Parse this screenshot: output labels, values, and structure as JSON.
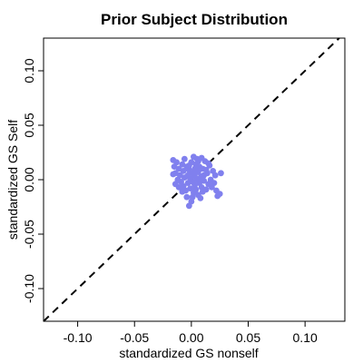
{
  "chart_data": {
    "type": "scatter",
    "title": "Prior Subject Distribution",
    "xlabel": "standardized GS nonself",
    "ylabel": "standardized GS Self",
    "xlim": [
      -0.13,
      0.135
    ],
    "ylim": [
      -0.13,
      0.13
    ],
    "xticks": [
      -0.1,
      -0.05,
      0.0,
      0.05,
      0.1
    ],
    "xtick_labels": [
      "-0.10",
      "-0.05",
      "0.00",
      "0.05",
      "0.10"
    ],
    "yticks": [
      -0.1,
      -0.05,
      0.0,
      0.05,
      0.1
    ],
    "ytick_labels": [
      "-0.10",
      "-0.05",
      "0.00",
      "0.05",
      "0.10"
    ],
    "grid": false,
    "point_color": "#8080ee",
    "reference_line": {
      "type": "identity",
      "slope": 1,
      "intercept": 0,
      "style": "dashed",
      "color": "#000000"
    },
    "points": [
      {
        "x": -0.016,
        "y": 0.018
      },
      {
        "x": -0.015,
        "y": 0.012
      },
      {
        "x": -0.014,
        "y": 0.006
      },
      {
        "x": -0.012,
        "y": 0.0
      },
      {
        "x": -0.014,
        "y": -0.004
      },
      {
        "x": -0.011,
        "y": 0.01
      },
      {
        "x": -0.01,
        "y": 0.004
      },
      {
        "x": -0.009,
        "y": -0.002
      },
      {
        "x": -0.008,
        "y": 0.014
      },
      {
        "x": -0.007,
        "y": 0.008
      },
      {
        "x": -0.007,
        "y": -0.006
      },
      {
        "x": -0.006,
        "y": 0.002
      },
      {
        "x": -0.005,
        "y": -0.01
      },
      {
        "x": -0.004,
        "y": 0.012
      },
      {
        "x": -0.004,
        "y": -0.016
      },
      {
        "x": -0.003,
        "y": 0.004
      },
      {
        "x": -0.003,
        "y": -0.003
      },
      {
        "x": -0.002,
        "y": 0.009
      },
      {
        "x": -0.002,
        "y": -0.024
      },
      {
        "x": -0.001,
        "y": 0.001
      },
      {
        "x": -0.001,
        "y": -0.008
      },
      {
        "x": 0.0,
        "y": 0.016
      },
      {
        "x": 0.0,
        "y": -0.02
      },
      {
        "x": 0.001,
        "y": 0.006
      },
      {
        "x": 0.001,
        "y": -0.002
      },
      {
        "x": 0.002,
        "y": 0.021
      },
      {
        "x": 0.002,
        "y": -0.012
      },
      {
        "x": 0.003,
        "y": 0.01
      },
      {
        "x": 0.003,
        "y": 0.003
      },
      {
        "x": 0.003,
        "y": -0.005
      },
      {
        "x": 0.004,
        "y": 0.014
      },
      {
        "x": 0.004,
        "y": -0.009
      },
      {
        "x": 0.005,
        "y": 0.0
      },
      {
        "x": 0.005,
        "y": 0.019
      },
      {
        "x": 0.006,
        "y": -0.014
      },
      {
        "x": 0.006,
        "y": 0.007
      },
      {
        "x": 0.007,
        "y": -0.003
      },
      {
        "x": 0.007,
        "y": 0.012
      },
      {
        "x": 0.008,
        "y": -0.017
      },
      {
        "x": 0.008,
        "y": 0.002
      },
      {
        "x": 0.009,
        "y": 0.02
      },
      {
        "x": 0.009,
        "y": -0.007
      },
      {
        "x": 0.01,
        "y": 0.01
      },
      {
        "x": 0.01,
        "y": -0.011
      },
      {
        "x": 0.011,
        "y": 0.004
      },
      {
        "x": 0.011,
        "y": -0.001
      },
      {
        "x": 0.012,
        "y": 0.017
      },
      {
        "x": 0.013,
        "y": -0.009
      },
      {
        "x": 0.014,
        "y": 0.006
      },
      {
        "x": 0.015,
        "y": -0.004
      },
      {
        "x": 0.016,
        "y": 0.013
      },
      {
        "x": 0.017,
        "y": 0.0
      },
      {
        "x": 0.018,
        "y": -0.007
      },
      {
        "x": 0.019,
        "y": 0.008
      },
      {
        "x": 0.021,
        "y": 0.004
      },
      {
        "x": 0.022,
        "y": -0.01
      },
      {
        "x": 0.023,
        "y": -0.015
      },
      {
        "x": 0.025,
        "y": -0.013
      },
      {
        "x": 0.026,
        "y": 0.006
      },
      {
        "x": -0.016,
        "y": 0.005
      },
      {
        "x": -0.013,
        "y": 0.016
      },
      {
        "x": -0.006,
        "y": 0.019
      },
      {
        "x": 0.004,
        "y": 0.008
      },
      {
        "x": 0.013,
        "y": 0.009
      },
      {
        "x": -0.008,
        "y": -0.011
      },
      {
        "x": 0.001,
        "y": -0.016
      },
      {
        "x": 0.015,
        "y": 0.015
      },
      {
        "x": 0.02,
        "y": -0.003
      },
      {
        "x": -0.011,
        "y": -0.007
      },
      {
        "x": 0.006,
        "y": 0.017
      },
      {
        "x": -0.002,
        "y": 0.013
      },
      {
        "x": 0.009,
        "y": 0.003
      }
    ]
  }
}
